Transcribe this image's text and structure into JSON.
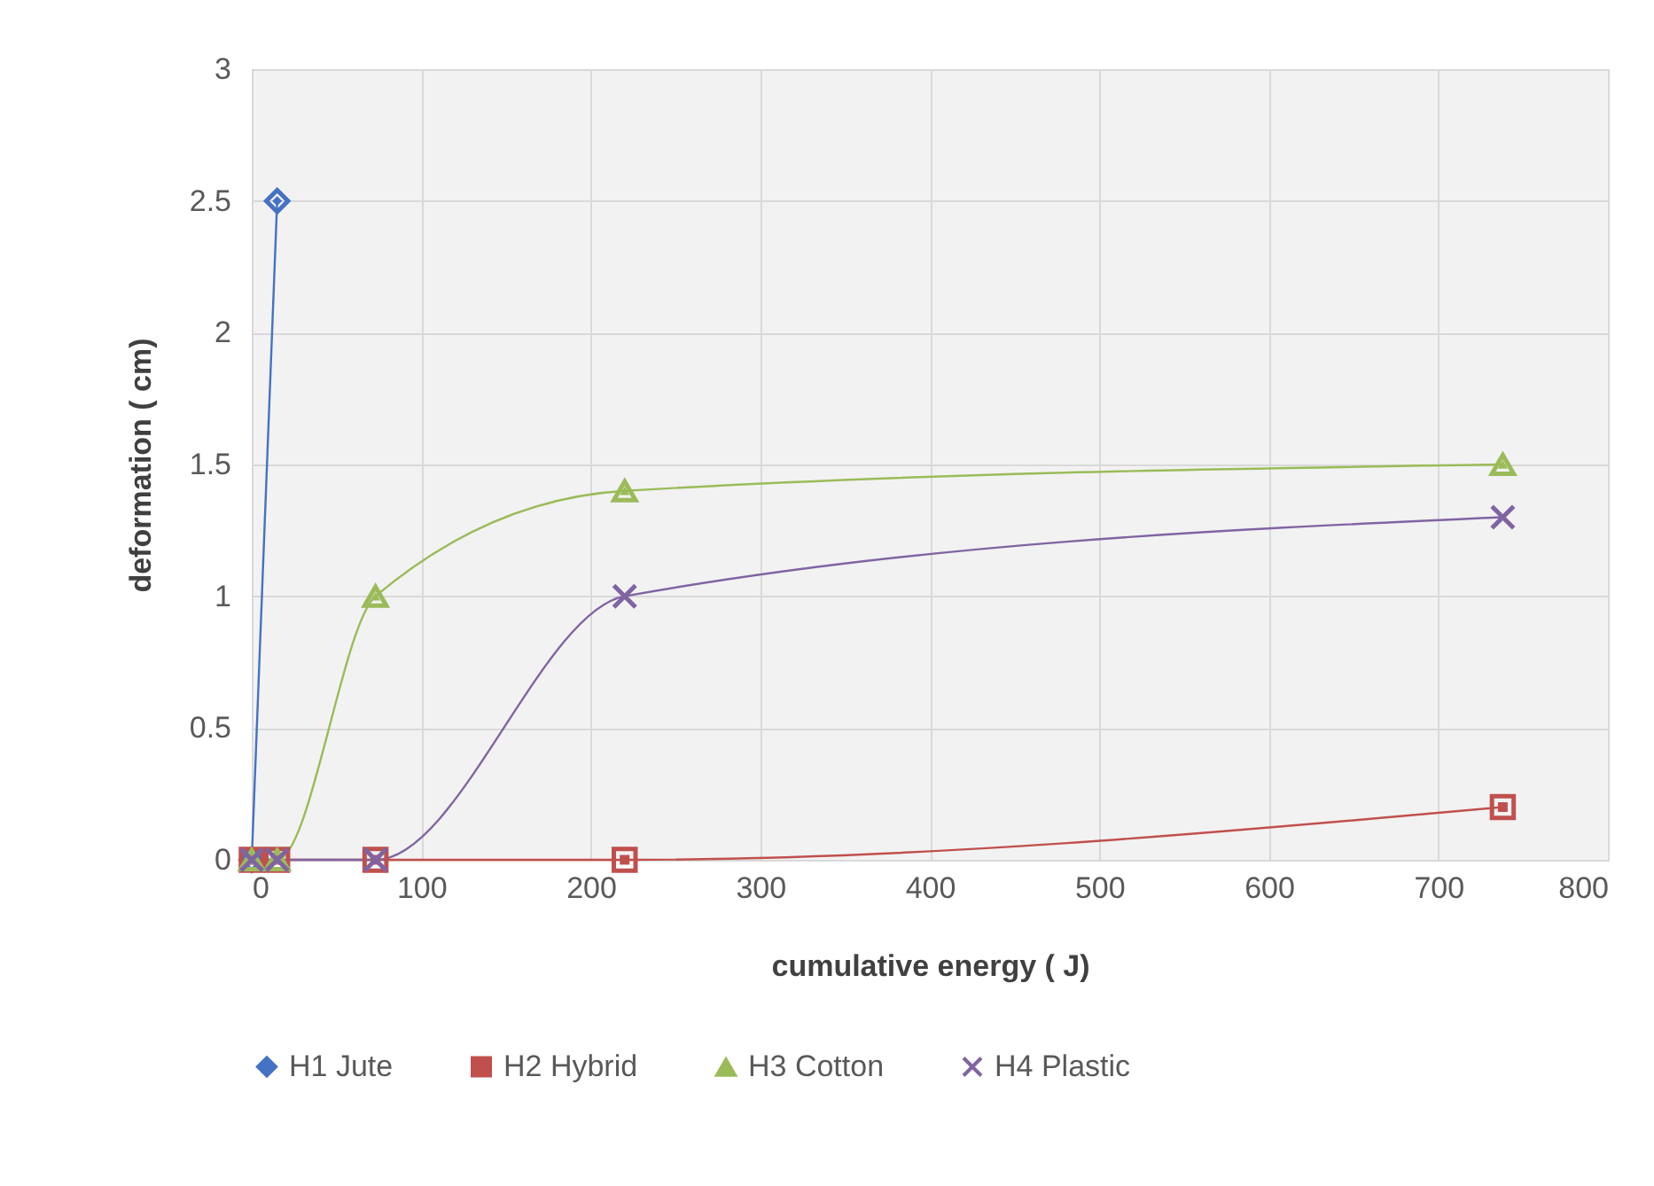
{
  "chart_data": {
    "type": "line",
    "xlabel": "cumulative  energy   ( J)",
    "ylabel": "deformation ( cm)",
    "xlim": [
      0,
      800
    ],
    "xticks": [
      0,
      100,
      200,
      300,
      400,
      500,
      600,
      700,
      800
    ],
    "ylim": [
      0,
      3
    ],
    "yticks": [
      0,
      0.5,
      1,
      1.5,
      2,
      2.5,
      3
    ],
    "grid": true,
    "legend": "bottom",
    "series": [
      {
        "name": "H1 Jute",
        "color": "#4472c4",
        "marker": "diamond",
        "x": [
          0,
          15
        ],
        "values": [
          0,
          2.5
        ]
      },
      {
        "name": "H2 Hybrid",
        "color": "#c0504d",
        "marker": "square",
        "x": [
          0,
          15,
          73,
          220,
          738
        ],
        "values": [
          0,
          0,
          0,
          0,
          0.2
        ]
      },
      {
        "name": "H3 Cotton",
        "color": "#9bbb59",
        "marker": "triangle",
        "x": [
          0,
          15,
          73,
          220,
          738
        ],
        "values": [
          0,
          0,
          1,
          1.4,
          1.5
        ]
      },
      {
        "name": "H4 Plastic",
        "color": "#8064a2",
        "marker": "cross",
        "x": [
          0,
          15,
          73,
          220,
          738
        ],
        "values": [
          0,
          0,
          0,
          1,
          1.3
        ]
      }
    ]
  }
}
